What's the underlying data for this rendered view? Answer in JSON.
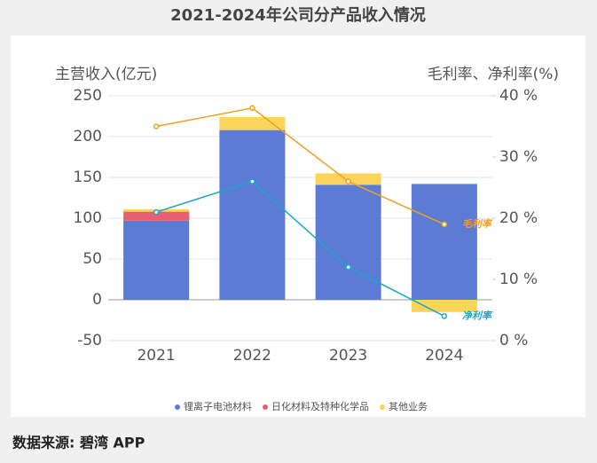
{
  "title": "2021-2024年公司分产品收入情况",
  "source": "数据来源: 碧湾 APP",
  "chart_data": {
    "type": "bar",
    "stacked": true,
    "y_label": "主营收入(亿元)",
    "y2_label": "毛利率、净利率(%)",
    "categories": [
      "2021",
      "2022",
      "2023",
      "2024"
    ],
    "ylim": [
      -50,
      250
    ],
    "yticks": [
      -50,
      0,
      50,
      100,
      150,
      200,
      250
    ],
    "y2lim": [
      0,
      40
    ],
    "y2ticks": [
      {
        "value": 0,
        "label": "0 %"
      },
      {
        "value": 10,
        "label": "10 %"
      },
      {
        "value": 20,
        "label": "20 %"
      },
      {
        "value": 30,
        "label": "30 %"
      },
      {
        "value": 40,
        "label": "40 %"
      }
    ],
    "grid": true,
    "legend": "bottom",
    "series": [
      {
        "name": "锂离子电池材料",
        "color": "#5b7bd5",
        "values": [
          97,
          208,
          141,
          142
        ]
      },
      {
        "name": "日化材料及特种化学品",
        "color": "#e8606f",
        "values": [
          11,
          0,
          0,
          0
        ]
      },
      {
        "name": "其他业务",
        "color": "#fcd45a",
        "values": [
          3,
          16,
          14,
          -15
        ]
      },
      {
        "name": "毛利率",
        "color": "#f0a020",
        "type": "line",
        "axis": "y2",
        "values": [
          35,
          38,
          26,
          19
        ]
      },
      {
        "name": "净利率",
        "color": "#1aa8c8",
        "type": "line",
        "axis": "y2",
        "values": [
          21,
          26,
          12,
          4
        ]
      }
    ]
  }
}
